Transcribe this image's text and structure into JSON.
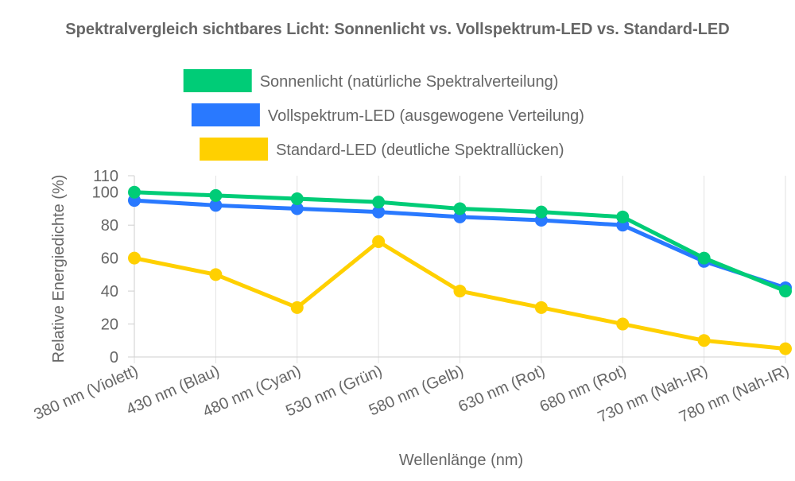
{
  "chart_data": {
    "type": "line",
    "title": "Spektralvergleich sichtbares Licht: Sonnenlicht vs. Vollspektrum-LED vs. Standard-LED",
    "xlabel": "Wellenlänge (nm)",
    "ylabel": "Relative Energiedichte (%)",
    "categories": [
      "380 nm (Violett)",
      "430 nm (Blau)",
      "480 nm (Cyan)",
      "530 nm (Grün)",
      "580 nm (Gelb)",
      "630 nm (Rot)",
      "680 nm (Rot)",
      "730 nm (Nah-IR)",
      "780 nm (Nah-IR)"
    ],
    "ylim": [
      0,
      110
    ],
    "yticks": [
      0,
      20,
      40,
      60,
      80,
      100,
      110
    ],
    "grid": "vertical",
    "legend_position": "top",
    "series": [
      {
        "name": "Sonnenlicht (natürliche Spektralverteilung)",
        "color": "#00cc77",
        "values": [
          100,
          98,
          96,
          94,
          90,
          88,
          85,
          60,
          40
        ]
      },
      {
        "name": "Vollspektrum-LED (ausgewogene Verteilung)",
        "color": "#2979ff",
        "values": [
          95,
          92,
          90,
          88,
          85,
          83,
          80,
          58,
          42
        ]
      },
      {
        "name": "Standard-LED (deutliche Spektrallücken)",
        "color": "#ffd000",
        "values": [
          60,
          50,
          30,
          70,
          40,
          30,
          20,
          10,
          5
        ]
      }
    ]
  }
}
